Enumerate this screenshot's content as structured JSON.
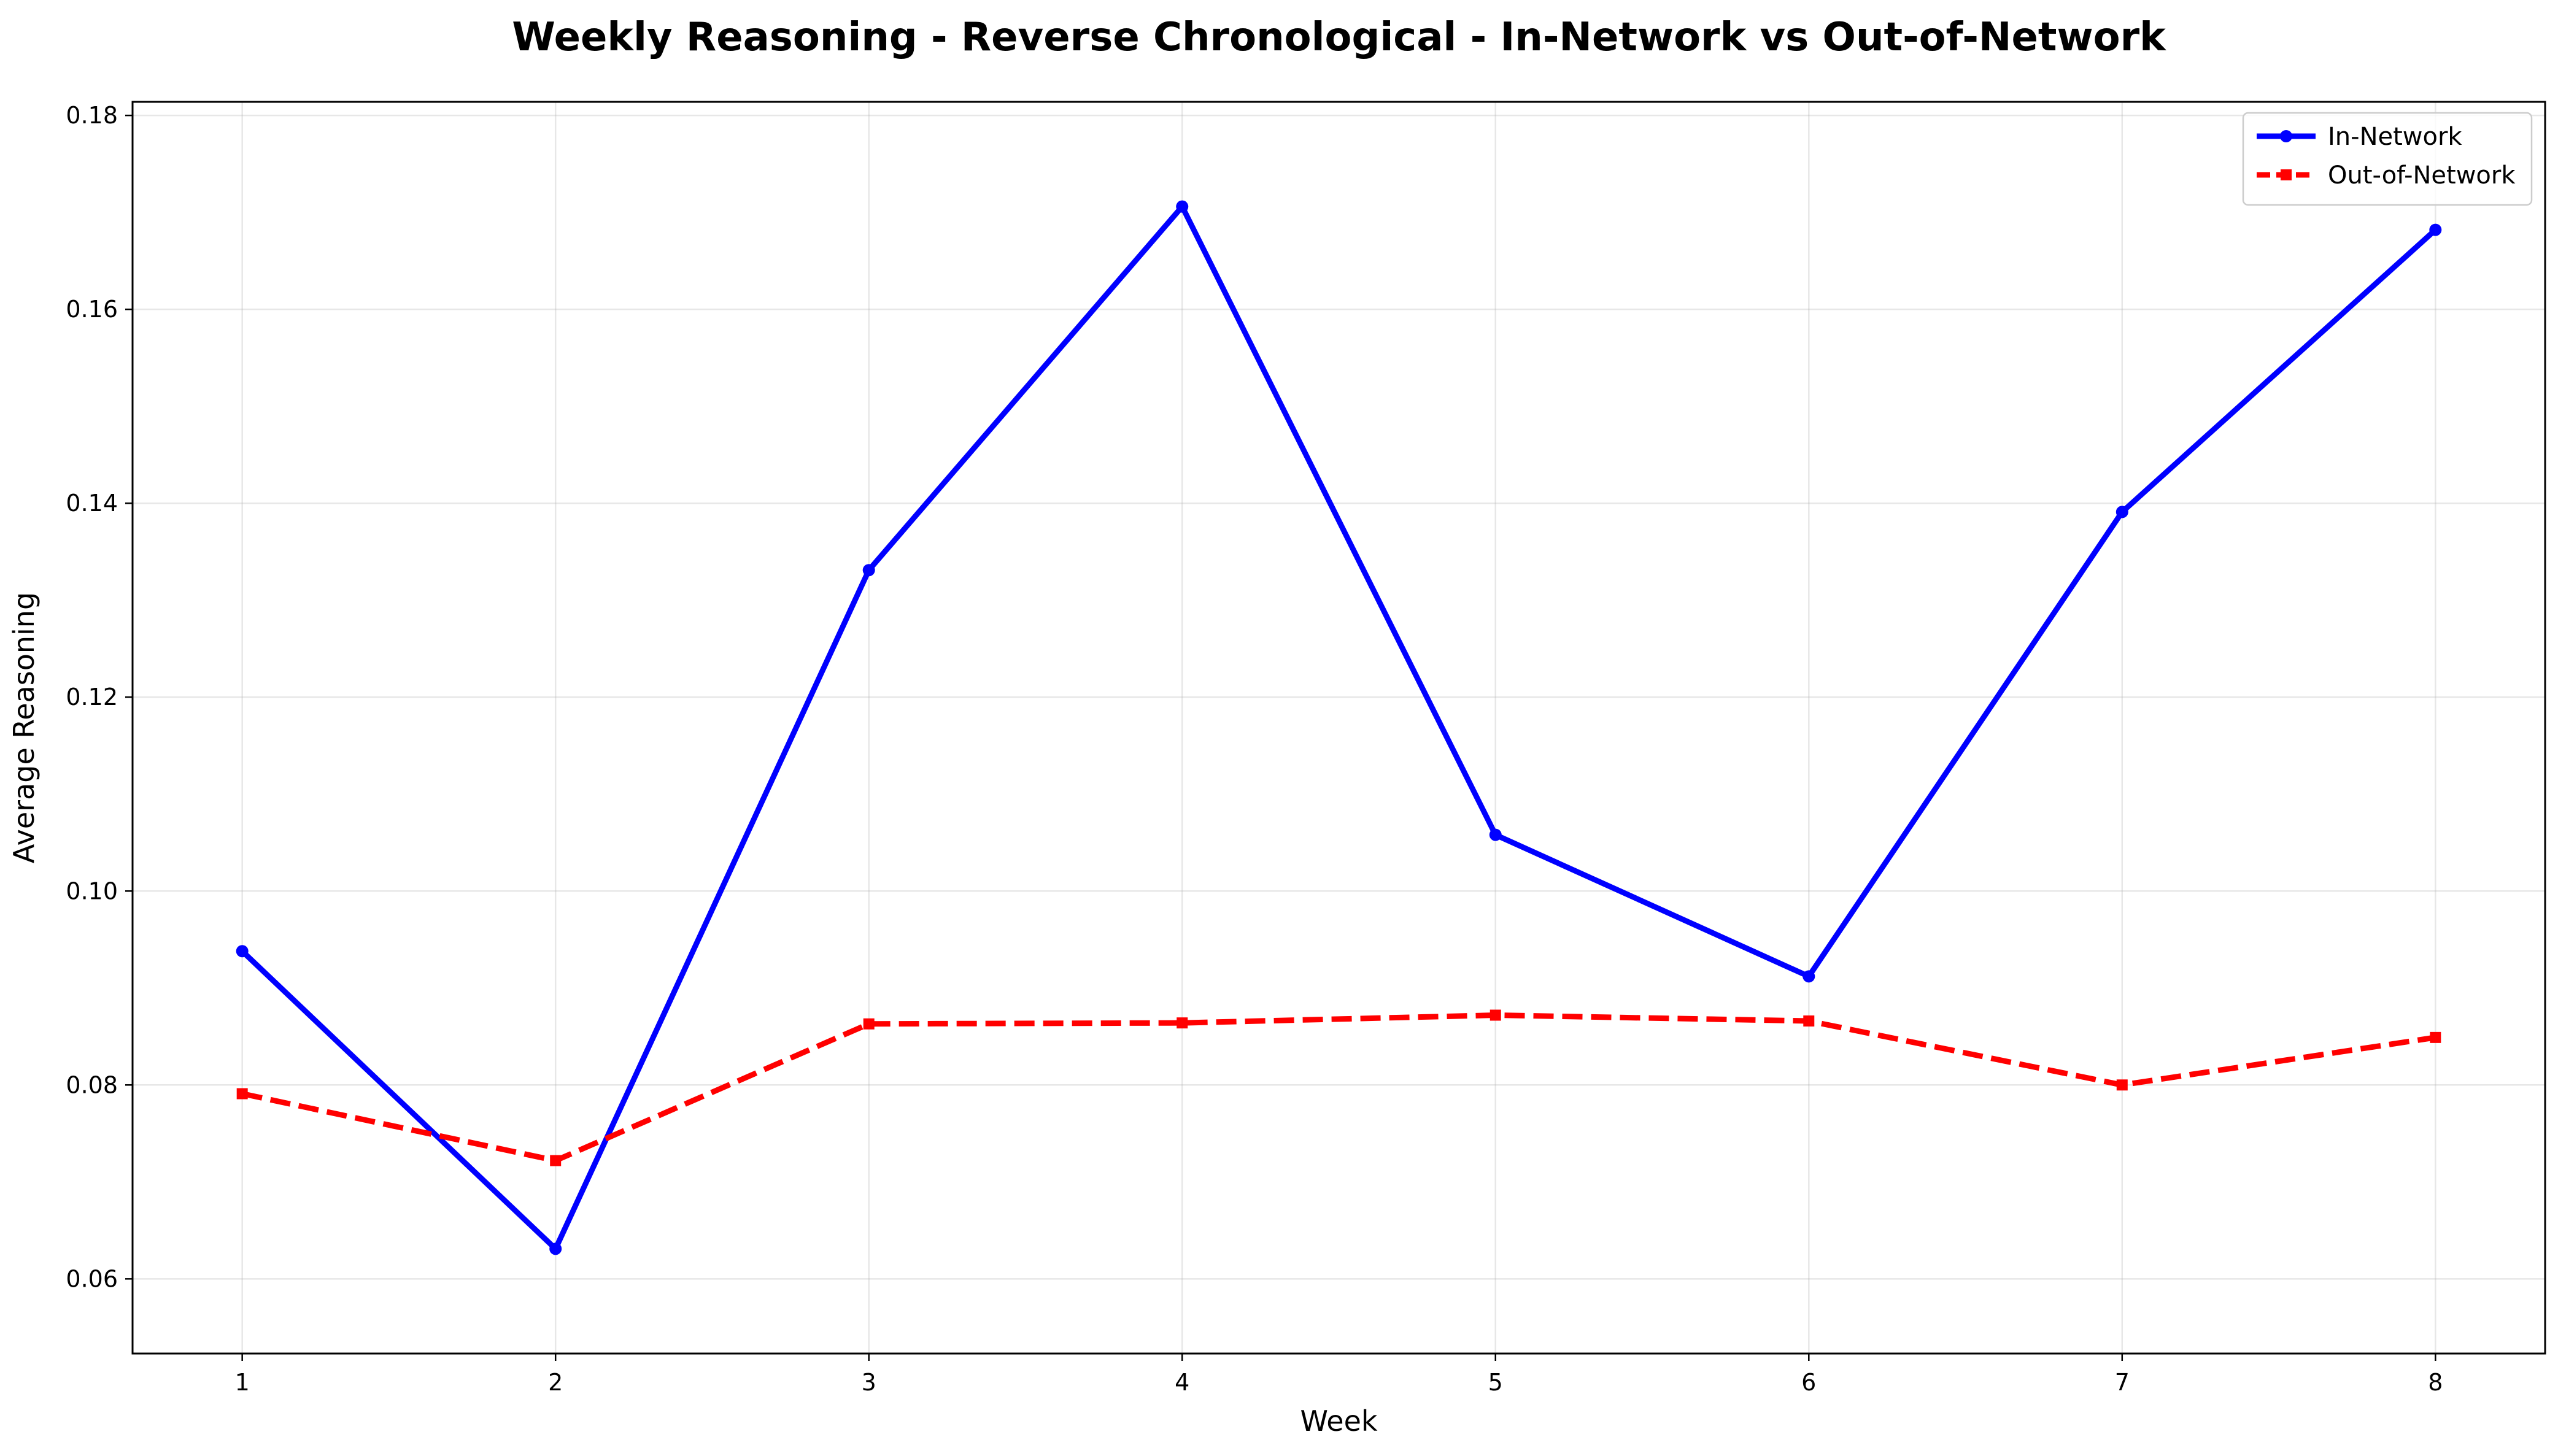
{
  "chart_data": {
    "type": "line",
    "title": "Weekly Reasoning - Reverse Chronological - In-Network vs Out-of-Network",
    "xlabel": "Week",
    "ylabel": "Average Reasoning",
    "x": [
      1,
      2,
      3,
      4,
      5,
      6,
      7,
      8
    ],
    "x_tick_labels": [
      "1",
      "2",
      "3",
      "4",
      "5",
      "6",
      "7",
      "8"
    ],
    "xlim": [
      0.65,
      8.35
    ],
    "y_ticks": [
      0.06,
      0.08,
      0.1,
      0.12,
      0.14,
      0.16,
      0.18
    ],
    "y_tick_labels": [
      "0.06",
      "0.08",
      "0.10",
      "0.12",
      "0.14",
      "0.16",
      "0.18"
    ],
    "ylim": [
      0.0523,
      0.1814
    ],
    "grid": true,
    "legend_position": "top-right",
    "series": [
      {
        "name": "In-Network",
        "color": "#0000ff",
        "line_style": "solid",
        "marker": "circle",
        "values": [
          0.0938,
          0.0631,
          0.1331,
          0.1706,
          0.1058,
          0.0912,
          0.1391,
          0.1682
        ]
      },
      {
        "name": "Out-of-Network",
        "color": "#ff0000",
        "line_style": "dashed",
        "marker": "square",
        "values": [
          0.0791,
          0.0722,
          0.0863,
          0.0864,
          0.0872,
          0.0866,
          0.08,
          0.0849
        ]
      }
    ]
  }
}
